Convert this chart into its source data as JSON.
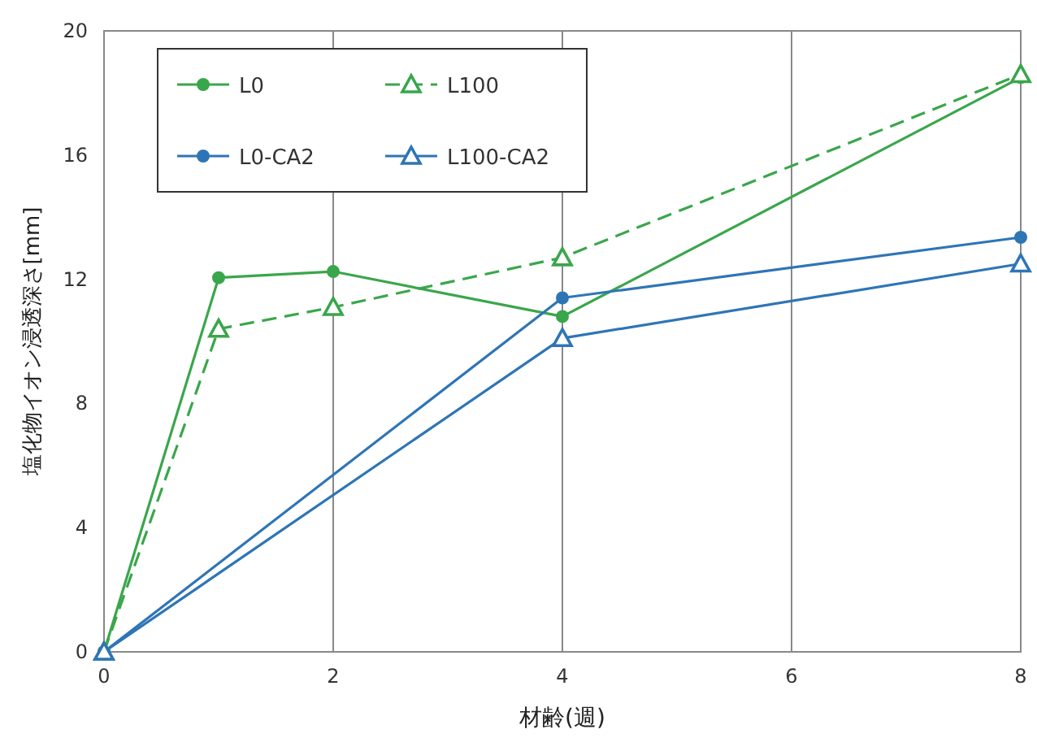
{
  "chart_data": {
    "type": "line",
    "xlabel": "材齢(週)",
    "ylabel": "塩化物イオン浸透深さ[mm]",
    "xlim": [
      0,
      8
    ],
    "ylim": [
      0,
      20
    ],
    "xticks": [
      0,
      2,
      4,
      6,
      8
    ],
    "yticks": [
      0,
      4,
      8,
      12,
      16,
      20
    ],
    "grid": "x",
    "legend": "top left",
    "series": [
      {
        "name": "L0",
        "color": "#3aa64c",
        "x": [
          0,
          1,
          2,
          4,
          8
        ],
        "values": [
          0,
          12.05,
          12.25,
          10.8,
          18.5
        ],
        "marker": "circle",
        "line_style": "solid"
      },
      {
        "name": "L100",
        "color": "#3aa64c",
        "x": [
          0,
          1,
          2,
          4,
          8
        ],
        "values": [
          0,
          10.4,
          11.1,
          12.7,
          18.6
        ],
        "marker": "triangle",
        "line_style": "dashed"
      },
      {
        "name": "L0-CA2",
        "color": "#2e75b6",
        "x": [
          0,
          4,
          8
        ],
        "values": [
          0,
          11.4,
          13.35
        ],
        "marker": "circle",
        "line_style": "solid"
      },
      {
        "name": "L100-CA2",
        "color": "#2e75b6",
        "x": [
          0,
          4,
          8
        ],
        "values": [
          0,
          10.1,
          12.5
        ],
        "marker": "triangle",
        "line_style": "solid"
      }
    ]
  }
}
